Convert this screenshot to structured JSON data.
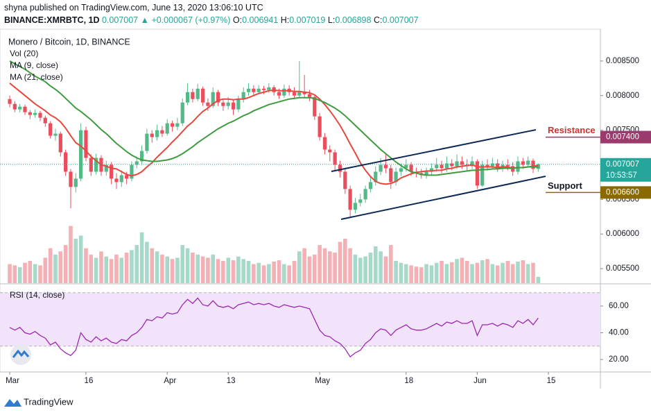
{
  "header": {
    "published": "shyna published on TradingView.com, June 13, 2020 13:06:10 UTC",
    "symbol": "BINANCE:XMRBTC, 1D",
    "change": "▲ +0.000067 (+0.97%)",
    "ohlc_labels": [
      "O:",
      "H:",
      "L:",
      "C:"
    ]
  },
  "chart_data": {
    "type": "candlestick",
    "title": "Monero / Bitcoin, 1D, BINANCE",
    "up_color": "#53b987",
    "down_color": "#eb4d5c",
    "ylim": [
      0.00529,
      0.00896
    ],
    "yticks": [
      {
        "value": 0.0055,
        "label": "0.005500"
      },
      {
        "value": 0.006,
        "label": "0.006000"
      },
      {
        "value": 0.0065,
        "label": "0.006500"
      },
      {
        "value": 0.007,
        "label": "0.007000"
      },
      {
        "value": 0.0075,
        "label": "0.007500"
      },
      {
        "value": 0.008,
        "label": "0.008000"
      },
      {
        "value": 0.0085,
        "label": "0.008500"
      }
    ],
    "xticks": [
      {
        "value": 0,
        "label": "Mar"
      },
      {
        "value": 15,
        "label": "16"
      },
      {
        "value": 31,
        "label": "Apr"
      },
      {
        "value": 43,
        "label": "13"
      },
      {
        "value": 61,
        "label": "May"
      },
      {
        "value": 78,
        "label": "18"
      },
      {
        "value": 92,
        "label": "Jun"
      },
      {
        "value": 106,
        "label": "15"
      }
    ],
    "ohlc": [
      [
        0.00795,
        0.008,
        0.00783,
        0.00788
      ],
      [
        0.00788,
        0.00792,
        0.00776,
        0.0078
      ],
      [
        0.0078,
        0.00788,
        0.00776,
        0.00784
      ],
      [
        0.00784,
        0.00787,
        0.00772,
        0.00776
      ],
      [
        0.00776,
        0.00779,
        0.00766,
        0.00772
      ],
      [
        0.00772,
        0.0078,
        0.00768,
        0.00775
      ],
      [
        0.00775,
        0.00778,
        0.00763,
        0.00768
      ],
      [
        0.00768,
        0.00771,
        0.00755,
        0.0076
      ],
      [
        0.0076,
        0.00763,
        0.00738,
        0.00742
      ],
      [
        0.00742,
        0.00752,
        0.00735,
        0.00745
      ],
      [
        0.00745,
        0.00748,
        0.00712,
        0.00718
      ],
      [
        0.00718,
        0.00722,
        0.00684,
        0.0069
      ],
      [
        0.0069,
        0.00694,
        0.00637,
        0.00668
      ],
      [
        0.00668,
        0.00688,
        0.0066,
        0.0068
      ],
      [
        0.0068,
        0.0076,
        0.00676,
        0.0075
      ],
      [
        0.0075,
        0.00755,
        0.00705,
        0.0071
      ],
      [
        0.0071,
        0.00715,
        0.00684,
        0.0069
      ],
      [
        0.0069,
        0.00716,
        0.00686,
        0.0071
      ],
      [
        0.0071,
        0.00714,
        0.00684,
        0.0069
      ],
      [
        0.0069,
        0.00706,
        0.00684,
        0.007
      ],
      [
        0.007,
        0.00704,
        0.00672,
        0.0068
      ],
      [
        0.0068,
        0.00688,
        0.00665,
        0.00675
      ],
      [
        0.00675,
        0.00692,
        0.00668,
        0.00685
      ],
      [
        0.00685,
        0.0069,
        0.00672,
        0.0068
      ],
      [
        0.0068,
        0.00705,
        0.00676,
        0.007
      ],
      [
        0.007,
        0.00712,
        0.00695,
        0.00705
      ],
      [
        0.00705,
        0.00728,
        0.007,
        0.0072
      ],
      [
        0.0072,
        0.00752,
        0.00716,
        0.00745
      ],
      [
        0.00745,
        0.0075,
        0.00732,
        0.0074
      ],
      [
        0.0074,
        0.00758,
        0.00735,
        0.0075
      ],
      [
        0.0075,
        0.00756,
        0.0074,
        0.00745
      ],
      [
        0.00745,
        0.00766,
        0.00742,
        0.0076
      ],
      [
        0.0076,
        0.00764,
        0.00748,
        0.00755
      ],
      [
        0.00755,
        0.00768,
        0.0075,
        0.0076
      ],
      [
        0.0076,
        0.00796,
        0.00756,
        0.0079
      ],
      [
        0.0079,
        0.00818,
        0.00786,
        0.00805
      ],
      [
        0.00805,
        0.0081,
        0.0079,
        0.00795
      ],
      [
        0.00795,
        0.00817,
        0.00792,
        0.0081
      ],
      [
        0.0081,
        0.00813,
        0.00785,
        0.0079
      ],
      [
        0.0079,
        0.00796,
        0.00778,
        0.00785
      ],
      [
        0.00785,
        0.00812,
        0.00782,
        0.00805
      ],
      [
        0.00805,
        0.00808,
        0.00785,
        0.0079
      ],
      [
        0.0079,
        0.00795,
        0.00778,
        0.00785
      ],
      [
        0.00785,
        0.00798,
        0.0078,
        0.0079
      ],
      [
        0.0079,
        0.00794,
        0.00772,
        0.0078
      ],
      [
        0.0078,
        0.008,
        0.00776,
        0.00795
      ],
      [
        0.00795,
        0.00812,
        0.0079,
        0.00805
      ],
      [
        0.00805,
        0.00818,
        0.008,
        0.0081
      ],
      [
        0.0081,
        0.00815,
        0.008,
        0.00805
      ],
      [
        0.00805,
        0.00815,
        0.00802,
        0.0081
      ],
      [
        0.0081,
        0.00814,
        0.00802,
        0.00808
      ],
      [
        0.00808,
        0.00818,
        0.00804,
        0.00812
      ],
      [
        0.00812,
        0.00815,
        0.008,
        0.00805
      ],
      [
        0.00805,
        0.0081,
        0.00795,
        0.008
      ],
      [
        0.008,
        0.00816,
        0.00797,
        0.0081
      ],
      [
        0.0081,
        0.00815,
        0.008,
        0.00805
      ],
      [
        0.00805,
        0.00812,
        0.00795,
        0.008
      ],
      [
        0.008,
        0.0085,
        0.00797,
        0.00805
      ],
      [
        0.00805,
        0.0083,
        0.00796,
        0.00802
      ],
      [
        0.00802,
        0.00808,
        0.00792,
        0.00798
      ],
      [
        0.00798,
        0.00802,
        0.00765,
        0.0077
      ],
      [
        0.0077,
        0.00775,
        0.00735,
        0.0074
      ],
      [
        0.0074,
        0.00746,
        0.00715,
        0.00722
      ],
      [
        0.00722,
        0.00728,
        0.00705,
        0.00718
      ],
      [
        0.00718,
        0.00722,
        0.00692,
        0.007
      ],
      [
        0.007,
        0.00706,
        0.00682,
        0.0069
      ],
      [
        0.0069,
        0.00694,
        0.00658,
        0.00665
      ],
      [
        0.00665,
        0.0067,
        0.00625,
        0.00635
      ],
      [
        0.00635,
        0.00652,
        0.0063,
        0.00645
      ],
      [
        0.00645,
        0.00658,
        0.0064,
        0.0065
      ],
      [
        0.0065,
        0.0067,
        0.00645,
        0.00665
      ],
      [
        0.00665,
        0.00682,
        0.0066,
        0.00675
      ],
      [
        0.00675,
        0.00698,
        0.0067,
        0.0069
      ],
      [
        0.0069,
        0.0071,
        0.00685,
        0.007
      ],
      [
        0.007,
        0.00715,
        0.00688,
        0.00695
      ],
      [
        0.00695,
        0.007,
        0.00665,
        0.00675
      ],
      [
        0.00675,
        0.00696,
        0.0067,
        0.0069
      ],
      [
        0.0069,
        0.00702,
        0.00684,
        0.00695
      ],
      [
        0.00695,
        0.00708,
        0.0069,
        0.007
      ],
      [
        0.007,
        0.00704,
        0.00684,
        0.0069
      ],
      [
        0.0069,
        0.00696,
        0.00682,
        0.00688
      ],
      [
        0.00688,
        0.00694,
        0.0068,
        0.00685
      ],
      [
        0.00685,
        0.00696,
        0.0068,
        0.0069
      ],
      [
        0.0069,
        0.00702,
        0.00686,
        0.00695
      ],
      [
        0.00695,
        0.0071,
        0.0069,
        0.007
      ],
      [
        0.007,
        0.00706,
        0.00688,
        0.00695
      ],
      [
        0.00695,
        0.00712,
        0.0069,
        0.00702
      ],
      [
        0.00702,
        0.00708,
        0.00692,
        0.00698
      ],
      [
        0.00698,
        0.00715,
        0.00694,
        0.00705
      ],
      [
        0.00705,
        0.00712,
        0.00694,
        0.007
      ],
      [
        0.007,
        0.00708,
        0.00692,
        0.00698
      ],
      [
        0.00698,
        0.00712,
        0.00694,
        0.00705
      ],
      [
        0.00705,
        0.00708,
        0.00665,
        0.0067
      ],
      [
        0.0067,
        0.00706,
        0.00668,
        0.007
      ],
      [
        0.007,
        0.00708,
        0.00692,
        0.00698
      ],
      [
        0.00698,
        0.0071,
        0.00694,
        0.00702
      ],
      [
        0.00702,
        0.00708,
        0.0069,
        0.00695
      ],
      [
        0.00695,
        0.00706,
        0.0069,
        0.007
      ],
      [
        0.007,
        0.00708,
        0.00692,
        0.00698
      ],
      [
        0.00698,
        0.00704,
        0.00684,
        0.0069
      ],
      [
        0.0069,
        0.00712,
        0.00686,
        0.00705
      ],
      [
        0.00705,
        0.0071,
        0.00694,
        0.007
      ],
      [
        0.007,
        0.00712,
        0.00696,
        0.00706
      ],
      [
        0.00706,
        0.00709,
        0.00688,
        0.00694
      ],
      [
        0.006941,
        0.007019,
        0.006898,
        0.007007
      ]
    ],
    "volume": {
      "name": "Vol (20)",
      "ylim": [
        0,
        400
      ],
      "up_color": "#a6d9c8",
      "down_color": "#f4b0b4",
      "values": [
        30,
        28,
        25,
        32,
        35,
        30,
        28,
        40,
        55,
        45,
        50,
        60,
        90,
        70,
        75,
        55,
        45,
        40,
        50,
        42,
        38,
        45,
        40,
        48,
        52,
        60,
        80,
        65,
        55,
        50,
        45,
        42,
        38,
        40,
        60,
        55,
        48,
        45,
        42,
        40,
        45,
        38,
        35,
        40,
        36,
        42,
        38,
        35,
        30,
        32,
        28,
        30,
        34,
        36,
        30,
        28,
        35,
        50,
        55,
        42,
        45,
        60,
        55,
        50,
        48,
        65,
        70,
        55,
        45,
        40,
        42,
        48,
        58,
        50,
        42,
        60,
        35,
        32,
        30,
        28,
        26,
        25,
        30,
        28,
        32,
        35,
        30,
        33,
        38,
        40,
        35,
        30,
        32,
        36,
        38,
        30,
        28,
        32,
        35,
        30,
        34,
        36,
        30,
        32,
        10
      ]
    },
    "series": [
      {
        "name": "MA (9, close)",
        "color": "#e5483d",
        "values": [
          0.00818,
          0.00812,
          0.00806,
          0.008,
          0.00794,
          0.00788,
          0.00783,
          0.00778,
          0.00772,
          0.00768,
          0.00762,
          0.00753,
          0.00742,
          0.00732,
          0.00727,
          0.0072,
          0.00712,
          0.00706,
          0.007,
          0.00698,
          0.00695,
          0.00694,
          0.0069,
          0.00686,
          0.00684,
          0.00686,
          0.0069,
          0.00697,
          0.00703,
          0.00711,
          0.00718,
          0.00725,
          0.00733,
          0.0074,
          0.00748,
          0.00756,
          0.00762,
          0.0077,
          0.00777,
          0.00782,
          0.00788,
          0.00793,
          0.00795,
          0.00795,
          0.00794,
          0.00795,
          0.00795,
          0.00797,
          0.008,
          0.00803,
          0.00805,
          0.00807,
          0.00808,
          0.00807,
          0.00807,
          0.00807,
          0.00806,
          0.00806,
          0.00805,
          0.00804,
          0.00801,
          0.00795,
          0.00787,
          0.00778,
          0.00768,
          0.00757,
          0.00744,
          0.0073,
          0.00717,
          0.00703,
          0.00692,
          0.00683,
          0.00676,
          0.00673,
          0.00672,
          0.00673,
          0.00676,
          0.00681,
          0.00684,
          0.00687,
          0.00689,
          0.0069,
          0.00691,
          0.00691,
          0.00692,
          0.00692,
          0.00694,
          0.00695,
          0.00697,
          0.00698,
          0.00699,
          0.007,
          0.00697,
          0.00697,
          0.00697,
          0.00697,
          0.00696,
          0.00697,
          0.00697,
          0.00695,
          0.00696,
          0.00696,
          0.00697,
          0.00698,
          0.00699
        ]
      },
      {
        "name": "MA (21, close)",
        "color": "#3e9b3e",
        "values": [
          0.0085,
          0.00846,
          0.00842,
          0.00838,
          0.00833,
          0.00828,
          0.00824,
          0.0082,
          0.00814,
          0.00809,
          0.00803,
          0.00796,
          0.00789,
          0.00782,
          0.00777,
          0.00771,
          0.00765,
          0.00758,
          0.00751,
          0.00745,
          0.00738,
          0.00731,
          0.00725,
          0.00719,
          0.00714,
          0.0071,
          0.00707,
          0.00706,
          0.00705,
          0.00705,
          0.00706,
          0.00707,
          0.00709,
          0.00712,
          0.00716,
          0.00721,
          0.00726,
          0.00732,
          0.00737,
          0.00742,
          0.00747,
          0.00752,
          0.00756,
          0.0076,
          0.00763,
          0.00767,
          0.00771,
          0.00774,
          0.00778,
          0.00781,
          0.00784,
          0.00787,
          0.00789,
          0.00791,
          0.00793,
          0.00795,
          0.00796,
          0.00797,
          0.00797,
          0.00797,
          0.00796,
          0.00793,
          0.0079,
          0.00786,
          0.00782,
          0.00777,
          0.00771,
          0.00764,
          0.00757,
          0.0075,
          0.00743,
          0.00736,
          0.00729,
          0.00722,
          0.00716,
          0.0071,
          0.00704,
          0.00699,
          0.00694,
          0.0069,
          0.00688,
          0.00686,
          0.00685,
          0.00685,
          0.00685,
          0.00686,
          0.00687,
          0.00688,
          0.00689,
          0.0069,
          0.00691,
          0.00692,
          0.00692,
          0.00693,
          0.00693,
          0.00694,
          0.00694,
          0.00695,
          0.00695,
          0.00695,
          0.00696,
          0.00696,
          0.00697,
          0.00697,
          0.00697
        ]
      }
    ],
    "price_labels": [
      {
        "name": "Resistance",
        "value": 0.0074,
        "label": "0.007400",
        "color": "#d32f2f",
        "box": "#9b3a6c"
      },
      {
        "name": "Support",
        "value": 0.0066,
        "label": "0.006600",
        "color": "#131722",
        "box": "#8a6a00"
      }
    ],
    "last_color": "#26a69a",
    "countdown": "10:53:57",
    "rsi": {
      "name": "RSI (14, close)",
      "color": "#9c27b0",
      "band": [
        30,
        70
      ],
      "ylim": [
        11.2,
        76.1
      ],
      "yticks": [
        {
          "value": 20,
          "label": "20.00"
        },
        {
          "value": 40,
          "label": "40.00"
        },
        {
          "value": 60,
          "label": "60.00"
        }
      ],
      "values": [
        44,
        42,
        44,
        40,
        39,
        41,
        38,
        36,
        31,
        33,
        28,
        25,
        23,
        27,
        40,
        35,
        33,
        37,
        34,
        36,
        33,
        32,
        35,
        34,
        38,
        40,
        44,
        50,
        49,
        52,
        51,
        55,
        54,
        55,
        61,
        65,
        62,
        66,
        61,
        60,
        64,
        60,
        59,
        60,
        58,
        61,
        62,
        63,
        61,
        62,
        61,
        62,
        60,
        59,
        61,
        60,
        59,
        60,
        59,
        58,
        50,
        42,
        38,
        37,
        34,
        32,
        28,
        22,
        25,
        27,
        32,
        35,
        40,
        43,
        42,
        38,
        42,
        44,
        46,
        43,
        42,
        42,
        43,
        45,
        47,
        45,
        48,
        47,
        49,
        47,
        47,
        49,
        38,
        46,
        46,
        47,
        45,
        47,
        46,
        44,
        49,
        47,
        50,
        46,
        51
      ]
    }
  },
  "footer": {
    "brand": "TradingView"
  }
}
